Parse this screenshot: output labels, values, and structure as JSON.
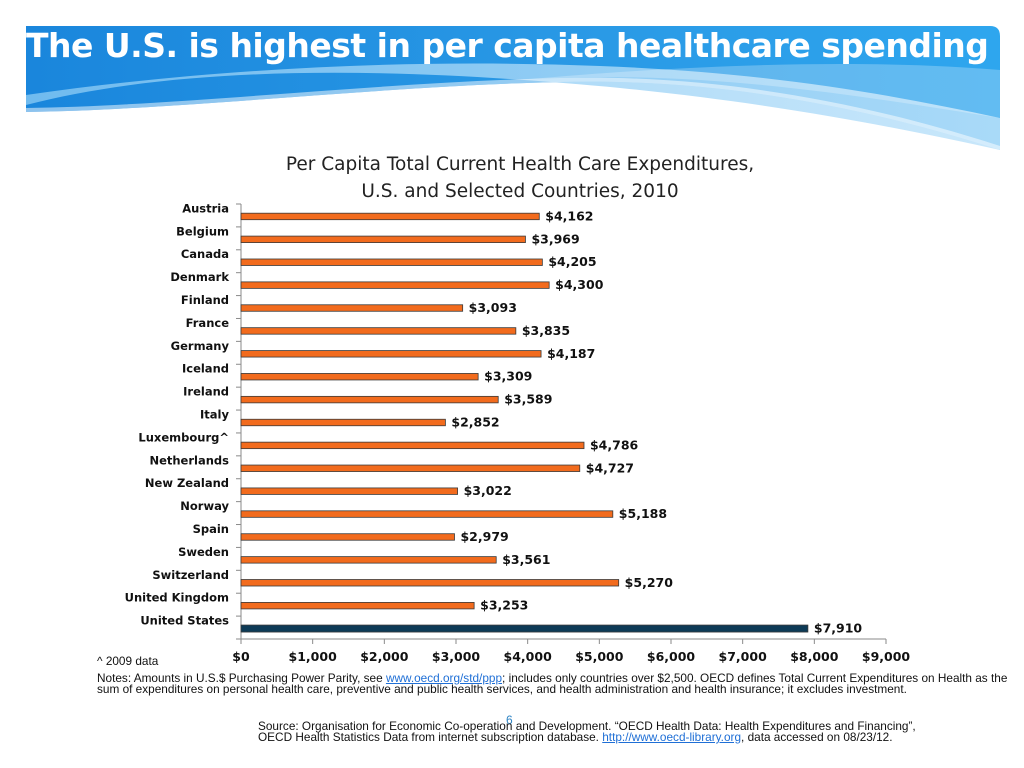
{
  "slide": {
    "title": "The U.S. is highest in per capita healthcare spending",
    "page_number": "6"
  },
  "colors": {
    "banner": "#1f8fe0",
    "bar": "#f26b1d",
    "bar_highlight": "#0d3a56",
    "bar_outline": "#3a3a3a"
  },
  "notes": {
    "footnote": "^ 2009 data",
    "notes_prefix": "Notes:  Amounts in U.S.$ Purchasing Power Parity, see ",
    "notes_link": "www.oecd.org/std/ppp",
    "notes_suffix": "; includes only countries over $2,500.  OECD defines Total Current Expenditures on Health as the sum of expenditures on personal health care, preventive and public health services, and health administration and health insurance; it excludes investment.",
    "source_prefix": "Source:  Organisation for Economic Co-operation and Development. “OECD Health Data: Health Expenditures and Financing”, OECD Health Statistics Data from internet subscription database. ",
    "source_link": "http://www.oecd-library.org",
    "source_suffix": ", data accessed on 08/23/12."
  },
  "chart_data": {
    "type": "bar",
    "orientation": "horizontal",
    "title_line1": "Per Capita Total Current Health Care Expenditures,",
    "title_line2": "U.S. and Selected Countries, 2010",
    "categories": [
      "Austria",
      "Belgium",
      "Canada",
      "Denmark",
      "Finland",
      "France",
      "Germany",
      "Iceland",
      "Ireland",
      "Italy",
      "Luxembourg^",
      "Netherlands",
      "New Zealand",
      "Norway",
      "Spain",
      "Sweden",
      "Switzerland",
      "United Kingdom",
      "United States"
    ],
    "values": [
      4162,
      3969,
      4205,
      4300,
      3093,
      3835,
      4187,
      3309,
      3589,
      2852,
      4786,
      4727,
      3022,
      5188,
      2979,
      3561,
      5270,
      3253,
      7910
    ],
    "value_labels": [
      "$4,162",
      "$3,969",
      "$4,205",
      "$4,300",
      "$3,093",
      "$3,835",
      "$4,187",
      "$3,309",
      "$3,589",
      "$2,852",
      "$4,786",
      "$4,727",
      "$3,022",
      "$5,188",
      "$2,979",
      "$3,561",
      "$5,270",
      "$3,253",
      "$7,910"
    ],
    "highlight": "United States",
    "xlim": [
      0,
      9000
    ],
    "x_ticks": [
      0,
      1000,
      2000,
      3000,
      4000,
      5000,
      6000,
      7000,
      8000,
      9000
    ],
    "x_tick_labels": [
      "$0",
      "$1,000",
      "$2,000",
      "$3,000",
      "$4,000",
      "$5,000",
      "$6,000",
      "$7,000",
      "$8,000",
      "$9,000"
    ],
    "grid": false,
    "legend": "none"
  }
}
